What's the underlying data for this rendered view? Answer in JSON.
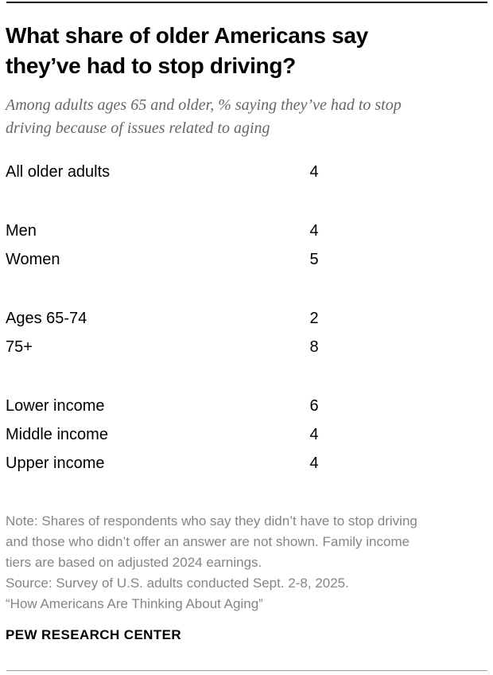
{
  "header": {
    "title": "What share of older Americans say they’ve had to stop driving?",
    "subtitle": "Among adults ages 65 and older, % saying they’ve had to stop driving because of issues related to aging"
  },
  "chart_data": {
    "type": "table",
    "title": "What share of older Americans say they’ve had to stop driving?",
    "subtitle": "Among adults ages 65 and older, % saying they’ve had to stop driving because of issues related to aging",
    "unit": "%",
    "groups": [
      {
        "rows": [
          {
            "label": "All older adults",
            "value": 4
          }
        ]
      },
      {
        "rows": [
          {
            "label": "Men",
            "value": 4
          },
          {
            "label": "Women",
            "value": 5
          }
        ]
      },
      {
        "rows": [
          {
            "label": "Ages 65-74",
            "value": 2
          },
          {
            "label": "75+",
            "value": 8
          }
        ]
      },
      {
        "rows": [
          {
            "label": "Lower income",
            "value": 6
          },
          {
            "label": "Middle income",
            "value": 4
          },
          {
            "label": "Upper income",
            "value": 4
          }
        ]
      }
    ]
  },
  "footer": {
    "note": "Note: Shares of respondents who say they didn’t have to stop driving and those who didn’t offer an answer are not shown. Family income tiers are based on adjusted 2024 earnings.",
    "source": "Source: Survey of U.S. adults conducted Sept. 2-8, 2025.",
    "report_title": "“How Americans Are Thinking About Aging”",
    "brand": "PEW RESEARCH CENTER"
  },
  "colors": {
    "background": "#ffffff",
    "title_text": "#000000",
    "subtitle_text": "#666666",
    "row_text": "#000000",
    "note_text": "#858585",
    "top_rule": "#000000",
    "bottom_rule": "#9b9b9b"
  }
}
